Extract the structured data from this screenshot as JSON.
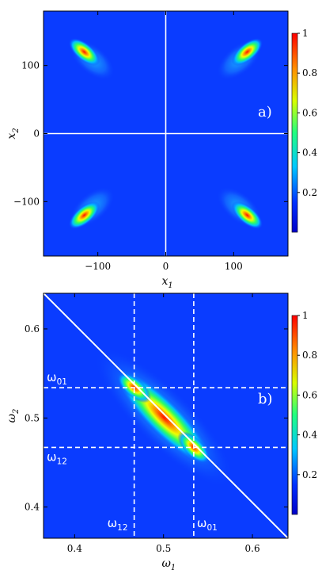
{
  "chart_data": [
    {
      "type": "heatmap",
      "panel_label": "a)",
      "xlabel": "x",
      "xlabel_sub": "1",
      "ylabel": "x",
      "ylabel_sub": "2",
      "xlim": [
        -180,
        180
      ],
      "ylim": [
        -180,
        180
      ],
      "xticks": [
        -100,
        0,
        100
      ],
      "xtick_labels": [
        "−100",
        "0",
        "100"
      ],
      "yticks": [
        -100,
        0,
        100
      ],
      "ytick_labels": [
        "−100",
        "0",
        "100"
      ],
      "zlim": [
        0,
        1
      ],
      "colorbar_ticks": [
        0.2,
        0.4,
        0.6,
        0.8,
        1
      ],
      "colorbar_labels": [
        "0.2",
        "0.4",
        "0.6",
        "0.8",
        "1"
      ],
      "peaks": [
        {
          "x": -120,
          "y": 120,
          "value": 1
        },
        {
          "x": 120,
          "y": 120,
          "value": 1
        },
        {
          "x": -120,
          "y": -120,
          "value": 1
        },
        {
          "x": 120,
          "y": -120,
          "value": 1
        }
      ],
      "reference_lines": [
        {
          "orientation": "vertical",
          "x": 0
        },
        {
          "orientation": "horizontal",
          "y": 0
        }
      ]
    },
    {
      "type": "heatmap",
      "panel_label": "b)",
      "xlabel": "ω",
      "xlabel_sub": "1",
      "ylabel": "ω",
      "ylabel_sub": "2",
      "xlim": [
        0.365,
        0.64
      ],
      "ylim": [
        0.365,
        0.64
      ],
      "xticks": [
        0.4,
        0.5,
        0.6
      ],
      "xtick_labels": [
        "0.4",
        "0.5",
        "0.6"
      ],
      "yticks": [
        0.4,
        0.5,
        0.6
      ],
      "ytick_labels": [
        "0.4",
        "0.5",
        "0.6"
      ],
      "zlim": [
        0,
        1
      ],
      "colorbar_ticks": [
        0.2,
        0.4,
        0.6,
        0.8,
        1
      ],
      "colorbar_labels": [
        "0.2",
        "0.4",
        "0.6",
        "0.8",
        "1"
      ],
      "peaks": [
        {
          "x": 0.467,
          "y": 0.534,
          "value": 1
        },
        {
          "x": 0.534,
          "y": 0.467,
          "value": 0.95
        }
      ],
      "reference_lines": [
        {
          "orientation": "vertical",
          "x": 0.467,
          "style": "dashed",
          "label": "ω",
          "label_sub": "12"
        },
        {
          "orientation": "vertical",
          "x": 0.534,
          "style": "dashed",
          "label": "ω",
          "label_sub": "01"
        },
        {
          "orientation": "horizontal",
          "y": 0.534,
          "style": "dashed",
          "label": "ω",
          "label_sub": "01"
        },
        {
          "orientation": "horizontal",
          "y": 0.467,
          "style": "dashed",
          "label": "ω",
          "label_sub": "12"
        },
        {
          "orientation": "diagonal",
          "style": "solid",
          "from": [
            0.365,
            0.64
          ],
          "to": [
            0.64,
            0.365
          ]
        }
      ]
    }
  ]
}
